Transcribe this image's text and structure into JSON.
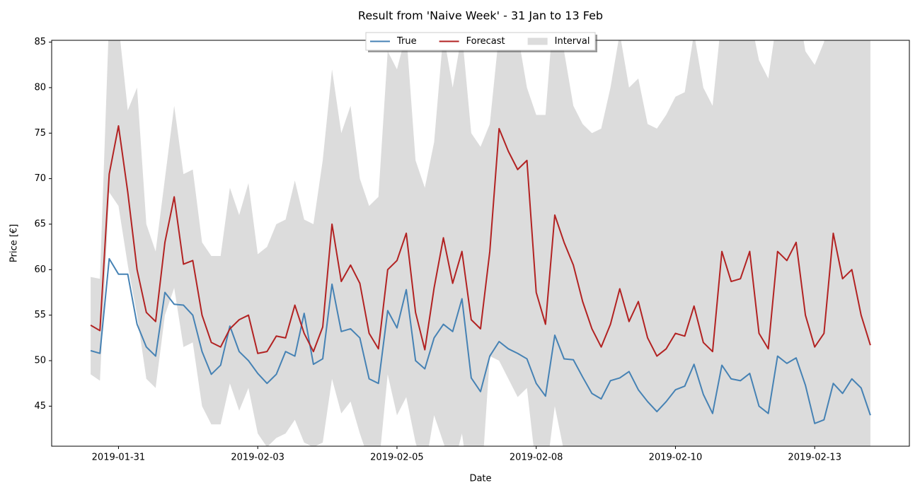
{
  "chart_data": {
    "type": "line",
    "title": "Result from 'Naive Week' - 31 Jan to 13 Feb",
    "x_label": "Date",
    "y_label": "Price [€]",
    "xlim": [
      -16.8,
      352.8
    ],
    "ylim": [
      40.6,
      85.2
    ],
    "xticks": [
      {
        "value": 12,
        "label": "2019-01-31"
      },
      {
        "value": 72,
        "label": "2019-02-03"
      },
      {
        "value": 132,
        "label": "2019-02-05"
      },
      {
        "value": 192,
        "label": "2019-02-08"
      },
      {
        "value": 252,
        "label": "2019-02-10"
      },
      {
        "value": 312,
        "label": "2019-02-13"
      }
    ],
    "yticks": [
      45,
      50,
      55,
      60,
      65,
      70,
      75,
      80,
      85
    ],
    "legend": "upper center",
    "x": [
      0,
      4,
      8,
      12,
      16,
      20,
      24,
      28,
      32,
      36,
      40,
      44,
      48,
      52,
      56,
      60,
      64,
      68,
      72,
      76,
      80,
      84,
      88,
      92,
      96,
      100,
      104,
      108,
      112,
      116,
      120,
      124,
      128,
      132,
      136,
      140,
      144,
      148,
      152,
      156,
      160,
      164,
      168,
      172,
      176,
      180,
      184,
      188,
      192,
      196,
      200,
      204,
      208,
      212,
      216,
      220,
      224,
      228,
      232,
      236,
      240,
      244,
      248,
      252,
      256,
      260,
      264,
      268,
      272,
      276,
      280,
      284,
      288,
      292,
      296,
      300,
      304,
      308,
      312,
      316,
      320,
      324,
      328,
      332,
      336
    ],
    "interval": {
      "name": "Interval",
      "color": "#dcdcdc",
      "upper": [
        59.2,
        59,
        88,
        87,
        77.5,
        80,
        65,
        62,
        70,
        78,
        70.5,
        71,
        63,
        61.5,
        61.5,
        69,
        66,
        69.5,
        61.7,
        62.5,
        65,
        65.5,
        69.8,
        65.5,
        65,
        72,
        82,
        75,
        78,
        70,
        67,
        68,
        84,
        82,
        86,
        72,
        69,
        74,
        86,
        80,
        86,
        75,
        73.5,
        76,
        86,
        86,
        86,
        80,
        77,
        77,
        90,
        84,
        78,
        76,
        75,
        75.5,
        80,
        86,
        80,
        81,
        76,
        75.5,
        77,
        79,
        79.5,
        86,
        80,
        78,
        88,
        87,
        87,
        88,
        83,
        81,
        88,
        88,
        90,
        84,
        82.5,
        85,
        90,
        88,
        88,
        88,
        88
      ],
      "lower": [
        48.5,
        47.8,
        68.5,
        67,
        60.5,
        55,
        48,
        47,
        55,
        58,
        51.5,
        52,
        45,
        43,
        43,
        47.5,
        44.5,
        47,
        42,
        40.5,
        41.5,
        42,
        43.5,
        41,
        40.5,
        41,
        48,
        44.2,
        45.5,
        42,
        39,
        38,
        48.5,
        44,
        46,
        41,
        38,
        44,
        41,
        38,
        42,
        35,
        35,
        50.5,
        50,
        48,
        46,
        47,
        38,
        37,
        45,
        40,
        38,
        38,
        36,
        34,
        36,
        38,
        36,
        37,
        34,
        33,
        34,
        35,
        35,
        36,
        34,
        33,
        36,
        36,
        36,
        37,
        34,
        33,
        36,
        36,
        36,
        35,
        33,
        33,
        35,
        34,
        35,
        34,
        33
      ]
    },
    "series": [
      {
        "name": "True",
        "color": "#4682b4",
        "values": [
          51.1,
          50.8,
          61.2,
          59.5,
          59.5,
          54,
          51.5,
          50.5,
          57.5,
          56.2,
          56.1,
          55,
          51,
          48.5,
          49.5,
          53.8,
          51,
          50,
          48.6,
          47.5,
          48.5,
          51,
          50.5,
          55.2,
          49.6,
          50.2,
          58.4,
          53.2,
          53.5,
          52.5,
          48,
          47.5,
          55.5,
          53.6,
          57.8,
          50,
          49.1,
          52.5,
          54,
          53.2,
          56.8,
          48.1,
          46.6,
          50.5,
          52.1,
          51.3,
          50.8,
          50.2,
          47.5,
          46.1,
          52.8,
          50.2,
          50.1,
          48.2,
          46.4,
          45.8,
          47.8,
          48.1,
          48.8,
          46.8,
          45.5,
          44.4,
          45.5,
          46.8,
          47.2,
          49.6,
          46.3,
          44.2,
          49.5,
          48,
          47.8,
          48.6,
          45,
          44.2,
          50.5,
          49.7,
          50.3,
          47.3,
          43.1,
          43.5,
          47.5,
          46.4,
          48,
          47,
          44
        ]
      },
      {
        "name": "Forecast",
        "color": "#b22222",
        "values": [
          53.9,
          53.3,
          70.5,
          75.8,
          68.5,
          60,
          55.3,
          54.3,
          63,
          68,
          60.6,
          61,
          55,
          52,
          51.5,
          53.5,
          54.5,
          55,
          50.8,
          51,
          52.7,
          52.5,
          56.1,
          53,
          51,
          53.7,
          65,
          58.7,
          60.5,
          58.5,
          53,
          51.3,
          60,
          61,
          64,
          55.3,
          51.2,
          58,
          63.5,
          58.5,
          62,
          54.5,
          53.5,
          62,
          75.5,
          73,
          71,
          72,
          57.5,
          54,
          66,
          63,
          60.5,
          56.5,
          53.5,
          51.5,
          54,
          57.9,
          54.3,
          56.5,
          52.5,
          50.5,
          51.3,
          53,
          52.7,
          56,
          52,
          51,
          62,
          58.7,
          59,
          62,
          53,
          51.3,
          62,
          61,
          63,
          55,
          51.5,
          53,
          64,
          59,
          60,
          55,
          51.7
        ]
      }
    ]
  }
}
